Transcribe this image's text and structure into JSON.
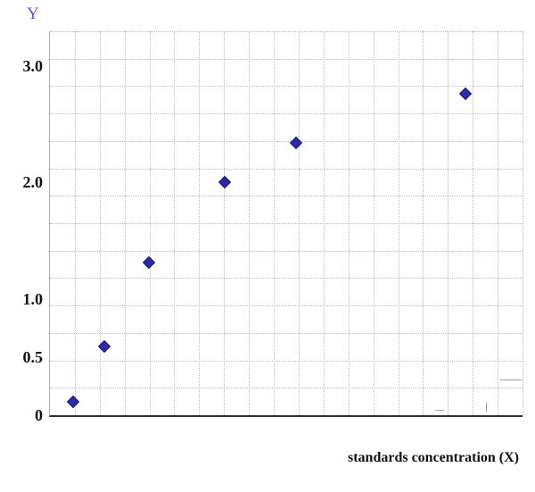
{
  "chart_data": {
    "type": "scatter",
    "title": "",
    "ylabel": "Y",
    "xlabel": "standards concentration (X)",
    "y_range": [
      0,
      3.3
    ],
    "y_ticks": [
      {
        "label": "3.0",
        "value": 3.0
      },
      {
        "label": "2.0",
        "value": 2.0
      },
      {
        "label": "1.0",
        "value": 1.0
      },
      {
        "label": "0.5",
        "value": 0.5
      },
      {
        "label": "0",
        "value": 0.0
      }
    ],
    "x_tick_labels": [],
    "grid": {
      "v_lines": 19,
      "h_lines": 14,
      "style": "dotted"
    },
    "legend": "none",
    "points": [
      {
        "x_frac": 0.047,
        "y": 0.12
      },
      {
        "x_frac": 0.113,
        "y": 0.6
      },
      {
        "x_frac": 0.208,
        "y": 1.32
      },
      {
        "x_frac": 0.368,
        "y": 2.01
      },
      {
        "x_frac": 0.519,
        "y": 2.35
      },
      {
        "x_frac": 0.877,
        "y": 2.77
      }
    ],
    "marker": {
      "shape": "diamond",
      "color": "#2b2ba6",
      "border": "#15157a"
    },
    "colors": {
      "grid": "#b9b9b9",
      "axis": "#2f2f2f",
      "ylabel_text": "#5b5bd6",
      "tick_text": "#111111"
    }
  }
}
